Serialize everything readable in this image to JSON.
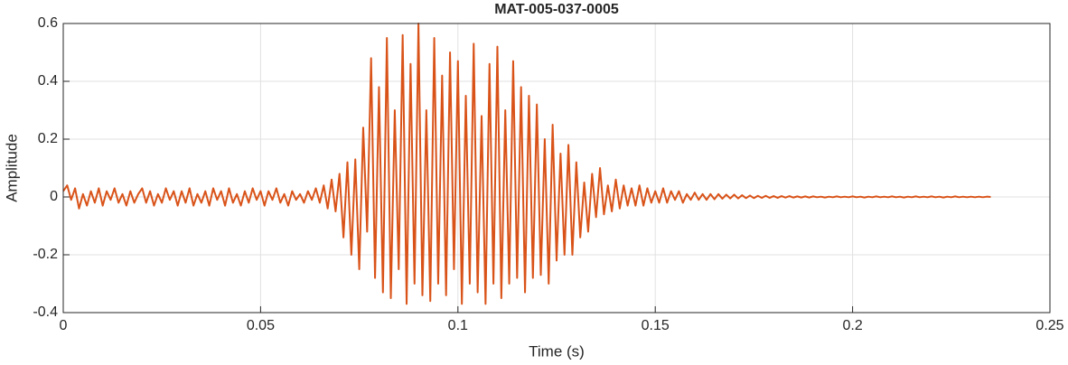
{
  "chart_data": {
    "type": "line",
    "title": "MAT-005-037-0005",
    "x_label": "Time (s)",
    "y_label": "Amplitude",
    "color": "#d95319",
    "grid": true,
    "xlim": [
      0,
      0.25
    ],
    "xticks": [
      0,
      0.05,
      0.1,
      0.15,
      0.2,
      0.25
    ],
    "ylim": [
      -0.4,
      0.6
    ],
    "yticks": [
      -0.4,
      -0.2,
      0,
      0.2,
      0.4,
      0.6
    ],
    "x": [
      0,
      0.001,
      0.002,
      0.003,
      0.004,
      0.005,
      0.006,
      0.007,
      0.008,
      0.009,
      0.01,
      0.011,
      0.012,
      0.013,
      0.014,
      0.015,
      0.016,
      0.017,
      0.018,
      0.019,
      0.02,
      0.021,
      0.022,
      0.023,
      0.024,
      0.025,
      0.026,
      0.027,
      0.028,
      0.029,
      0.03,
      0.031,
      0.032,
      0.033,
      0.034,
      0.035,
      0.036,
      0.037,
      0.038,
      0.039,
      0.04,
      0.041,
      0.042,
      0.043,
      0.044,
      0.045,
      0.046,
      0.047,
      0.048,
      0.049,
      0.05,
      0.051,
      0.052,
      0.053,
      0.054,
      0.055,
      0.056,
      0.057,
      0.058,
      0.059,
      0.06,
      0.061,
      0.062,
      0.063,
      0.064,
      0.065,
      0.066,
      0.067,
      0.068,
      0.069,
      0.07,
      0.071,
      0.072,
      0.073,
      0.074,
      0.075,
      0.076,
      0.077,
      0.078,
      0.079,
      0.08,
      0.081,
      0.082,
      0.083,
      0.084,
      0.085,
      0.086,
      0.087,
      0.088,
      0.089,
      0.09,
      0.091,
      0.092,
      0.093,
      0.094,
      0.095,
      0.096,
      0.097,
      0.098,
      0.099,
      0.1,
      0.101,
      0.102,
      0.103,
      0.104,
      0.105,
      0.106,
      0.107,
      0.108,
      0.109,
      0.11,
      0.111,
      0.112,
      0.113,
      0.114,
      0.115,
      0.116,
      0.117,
      0.118,
      0.119,
      0.12,
      0.121,
      0.122,
      0.123,
      0.124,
      0.125,
      0.126,
      0.127,
      0.128,
      0.129,
      0.13,
      0.131,
      0.132,
      0.133,
      0.134,
      0.135,
      0.136,
      0.137,
      0.138,
      0.139,
      0.14,
      0.141,
      0.142,
      0.143,
      0.144,
      0.145,
      0.146,
      0.147,
      0.148,
      0.149,
      0.15,
      0.151,
      0.152,
      0.153,
      0.154,
      0.155,
      0.156,
      0.157,
      0.158,
      0.159,
      0.16,
      0.161,
      0.162,
      0.163,
      0.164,
      0.165,
      0.166,
      0.167,
      0.168,
      0.169,
      0.17,
      0.171,
      0.172,
      0.173,
      0.174,
      0.175,
      0.176,
      0.177,
      0.178,
      0.179,
      0.18,
      0.181,
      0.182,
      0.183,
      0.184,
      0.185,
      0.186,
      0.187,
      0.188,
      0.189,
      0.19,
      0.191,
      0.192,
      0.193,
      0.194,
      0.195,
      0.196,
      0.197,
      0.198,
      0.199,
      0.2,
      0.201,
      0.202,
      0.203,
      0.204,
      0.205,
      0.206,
      0.207,
      0.208,
      0.209,
      0.21,
      0.211,
      0.212,
      0.213,
      0.214,
      0.215,
      0.216,
      0.217,
      0.218,
      0.219,
      0.22,
      0.221,
      0.222,
      0.223,
      0.224,
      0.225,
      0.226,
      0.227,
      0.228,
      0.229,
      0.23,
      0.231,
      0.232,
      0.233,
      0.234,
      0.235
    ],
    "values": [
      0.02,
      0.04,
      -0.01,
      0.03,
      -0.04,
      0.01,
      -0.03,
      0.02,
      -0.02,
      0.03,
      -0.03,
      0.02,
      -0.01,
      0.03,
      -0.02,
      0.01,
      -0.03,
      0.02,
      -0.02,
      0.01,
      0.03,
      -0.02,
      0.02,
      -0.03,
      0.01,
      -0.02,
      0.03,
      -0.01,
      0.02,
      -0.03,
      0.02,
      -0.02,
      0.03,
      -0.03,
      0.01,
      -0.02,
      0.02,
      -0.03,
      0.03,
      -0.01,
      0.02,
      -0.03,
      0.03,
      -0.02,
      0.01,
      -0.03,
      0.02,
      -0.02,
      0.03,
      -0.01,
      0.02,
      -0.03,
      0.02,
      -0.01,
      0.03,
      -0.02,
      0.01,
      -0.03,
      0.02,
      -0.01,
      0.01,
      -0.02,
      0.02,
      -0.01,
      0.03,
      -0.02,
      0.04,
      -0.04,
      0.06,
      -0.05,
      0.08,
      -0.14,
      0.12,
      -0.2,
      0.13,
      -0.25,
      0.24,
      -0.12,
      0.48,
      -0.28,
      0.38,
      -0.33,
      0.55,
      -0.35,
      0.3,
      -0.25,
      0.56,
      -0.37,
      0.46,
      -0.3,
      0.6,
      -0.34,
      0.3,
      -0.36,
      0.55,
      -0.3,
      0.42,
      -0.34,
      0.5,
      -0.25,
      0.47,
      -0.37,
      0.35,
      -0.3,
      0.53,
      -0.33,
      0.28,
      -0.37,
      0.46,
      -0.3,
      0.52,
      -0.35,
      0.3,
      -0.3,
      0.47,
      -0.28,
      0.38,
      -0.33,
      0.35,
      -0.28,
      0.32,
      -0.27,
      0.2,
      -0.3,
      0.25,
      -0.22,
      0.15,
      -0.2,
      0.18,
      -0.2,
      0.12,
      -0.14,
      0.05,
      -0.12,
      0.08,
      -0.07,
      0.1,
      -0.06,
      0.04,
      -0.05,
      0.06,
      -0.04,
      0.04,
      -0.03,
      0.03,
      -0.03,
      0.04,
      -0.03,
      0.03,
      -0.02,
      0.02,
      -0.02,
      0.03,
      -0.02,
      0.02,
      -0.01,
      0.02,
      -0.02,
      0.01,
      -0.01,
      0.015,
      -0.01,
      0.01,
      -0.01,
      0.01,
      -0.008,
      0.01,
      -0.006,
      0.008,
      -0.005,
      0.008,
      -0.005,
      0.006,
      -0.004,
      0.005,
      -0.004,
      0.004,
      -0.003,
      0.004,
      -0.003,
      0.003,
      -0.003,
      0.003,
      -0.002,
      0.003,
      -0.002,
      0.002,
      -0.002,
      0.002,
      -0.002,
      0.002,
      -0.001,
      0.001,
      -0.002,
      0.001,
      -0.001,
      0.002,
      -0.001,
      0.001,
      -0.001,
      0.002,
      -0.001,
      0.001,
      -0.002,
      0.001,
      -0.001,
      0.002,
      -0.001,
      0.001,
      -0.001,
      0.002,
      -0.001,
      0.001,
      -0.002,
      0.001,
      -0.001,
      0.002,
      -0.001,
      0.001,
      -0.001,
      0.002,
      -0.001,
      0.001,
      -0.002,
      0.001,
      -0.001,
      0.002,
      -0.001,
      0.001,
      -0.001,
      0.001,
      -0.001,
      0.001,
      -0.001,
      0.001,
      0
    ]
  }
}
